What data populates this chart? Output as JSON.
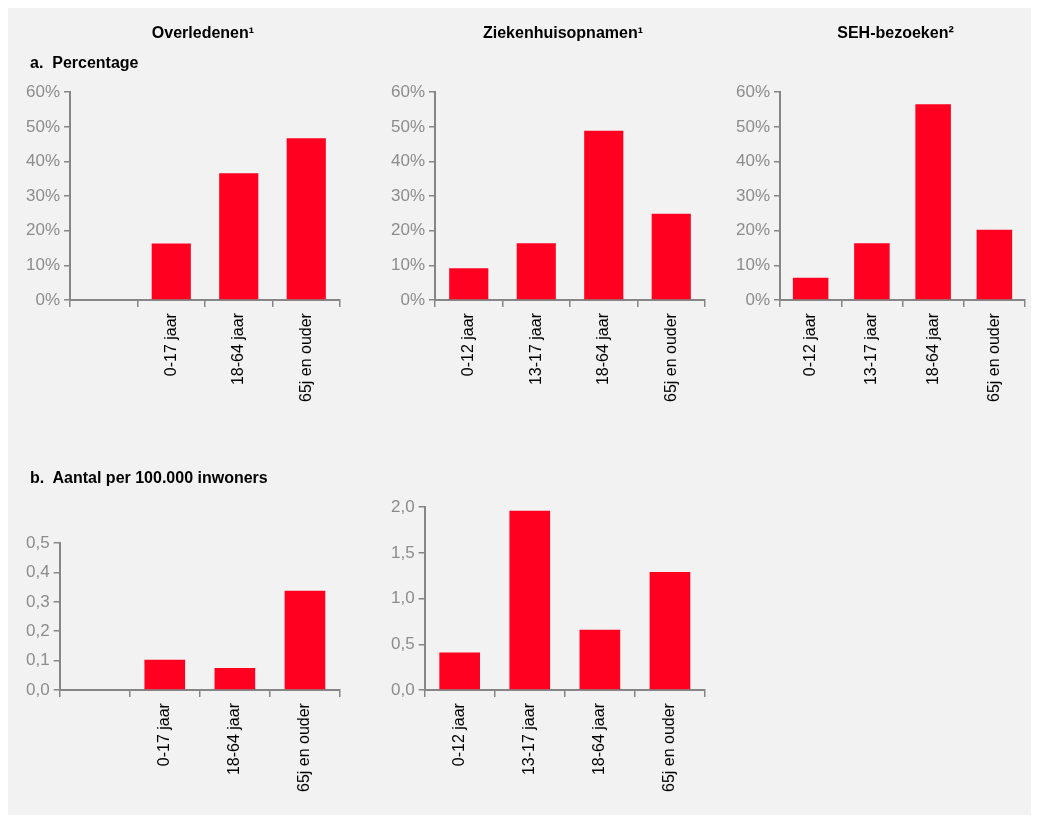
{
  "chart_data": [
    {
      "type": "bar",
      "title": "Overledenen¹",
      "subtitle": "a.  Percentage",
      "categories": [
        null,
        "0-17 jaar",
        "18-64 jaar",
        "65j en ouder"
      ],
      "values": [
        null,
        16.3,
        36.6,
        46.7
      ],
      "color": "#ff0020",
      "ylim": [
        0,
        60
      ],
      "yticks": [
        {
          "value": 0,
          "label": "0%"
        },
        {
          "value": 10,
          "label": "10%"
        },
        {
          "value": 20,
          "label": "20%"
        },
        {
          "value": 30,
          "label": "30%"
        },
        {
          "value": 40,
          "label": "40%"
        },
        {
          "value": 50,
          "label": "50%"
        },
        {
          "value": 60,
          "label": "60%"
        }
      ]
    },
    {
      "type": "bar",
      "title": "Ziekenhuisopnamen¹",
      "categories": [
        "0-12 jaar",
        "13-17 jaar",
        "18-64 jaar",
        "65j en ouder"
      ],
      "values": [
        9.2,
        16.4,
        48.9,
        24.9
      ],
      "color": "#ff0020",
      "ylim": [
        0,
        60
      ],
      "yticks": [
        {
          "value": 0,
          "label": "0%"
        },
        {
          "value": 10,
          "label": "10%"
        },
        {
          "value": 20,
          "label": "20%"
        },
        {
          "value": 30,
          "label": "30%"
        },
        {
          "value": 40,
          "label": "40%"
        },
        {
          "value": 50,
          "label": "50%"
        },
        {
          "value": 60,
          "label": "60%"
        }
      ]
    },
    {
      "type": "bar",
      "title": "SEH-bezoeken²",
      "categories": [
        "0-12 jaar",
        "13-17 jaar",
        "18-64 jaar",
        "65j en ouder"
      ],
      "values": [
        6.4,
        16.4,
        56.5,
        20.3
      ],
      "color": "#ff0020",
      "ylim": [
        0,
        60
      ],
      "yticks": [
        {
          "value": 0,
          "label": "0%"
        },
        {
          "value": 10,
          "label": "10%"
        },
        {
          "value": 20,
          "label": "20%"
        },
        {
          "value": 30,
          "label": "30%"
        },
        {
          "value": 40,
          "label": "40%"
        },
        {
          "value": 50,
          "label": "50%"
        },
        {
          "value": 60,
          "label": "60%"
        }
      ]
    },
    {
      "type": "bar",
      "subtitle": "b.  Aantal per 100.000 inwoners",
      "categories": [
        null,
        "0-17 jaar",
        "18-64 jaar",
        "65j en ouder"
      ],
      "values": [
        null,
        0.103,
        0.075,
        0.338
      ],
      "color": "#ff0020",
      "ylim": [
        0,
        0.5
      ],
      "yticks": [
        {
          "value": 0,
          "label": "0,0"
        },
        {
          "value": 0.1,
          "label": "0,1"
        },
        {
          "value": 0.2,
          "label": "0,2"
        },
        {
          "value": 0.3,
          "label": "0,3"
        },
        {
          "value": 0.4,
          "label": "0,4"
        },
        {
          "value": 0.5,
          "label": "0,5"
        }
      ]
    },
    {
      "type": "bar",
      "categories": [
        "0-12 jaar",
        "13-17 jaar",
        "18-64 jaar",
        "65j en ouder"
      ],
      "values": [
        0.41,
        1.96,
        0.66,
        1.29
      ],
      "color": "#ff0020",
      "ylim": [
        0,
        2
      ],
      "yticks": [
        {
          "value": 0,
          "label": "0,0"
        },
        {
          "value": 0.5,
          "label": "0,5"
        },
        {
          "value": 1,
          "label": "1,0"
        },
        {
          "value": 1.5,
          "label": "1,5"
        },
        {
          "value": 2,
          "label": "2,0"
        }
      ]
    }
  ]
}
